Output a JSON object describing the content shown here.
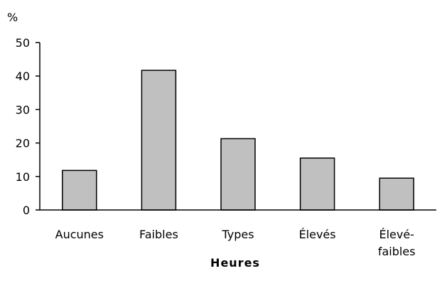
{
  "chart_data": {
    "type": "bar",
    "title": "",
    "ylabel": "%",
    "xlabel": "Heures",
    "categories": [
      "Aucunes",
      "Faibles",
      "Types",
      "Élevés",
      "Élevé-faibles"
    ],
    "category_lines": [
      [
        "Aucunes"
      ],
      [
        "Faibles"
      ],
      [
        "Types"
      ],
      [
        "Élevés"
      ],
      [
        "Élevé-",
        "faibles"
      ]
    ],
    "values": [
      11.8,
      41.7,
      21.3,
      15.5,
      9.5
    ],
    "ylim": [
      0,
      50
    ],
    "yticks": [
      "0",
      "10",
      "20",
      "30",
      "40",
      "50"
    ],
    "grid": false,
    "colors": {
      "bar_fill": "#c0c0c0",
      "bar_stroke": "#000000",
      "axis": "#000000"
    }
  }
}
